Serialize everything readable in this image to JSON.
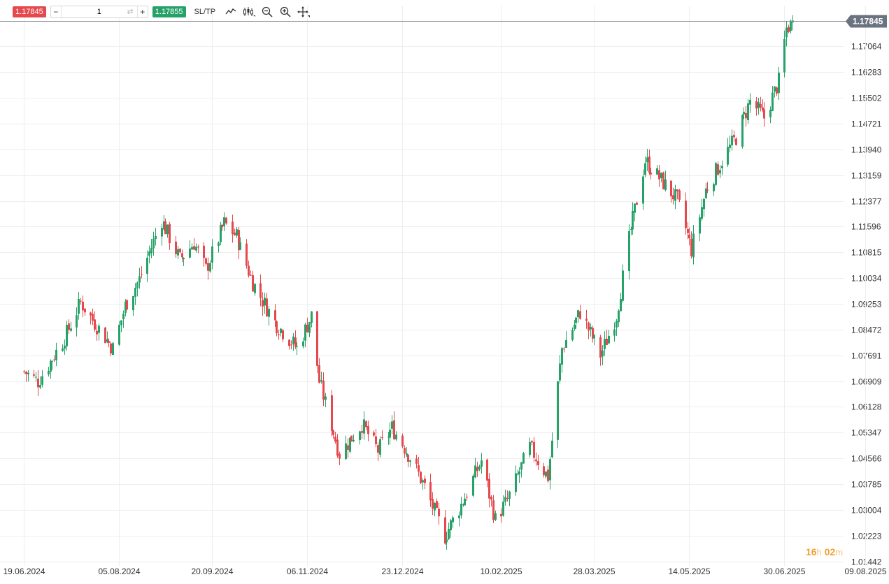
{
  "toolbar": {
    "sell_price": "1.17845",
    "quantity": "1",
    "buy_price": "1.17855",
    "sltp_label": "SL/TP",
    "icons": [
      "line-chart-icon",
      "candlestick-icon",
      "zoom-out-icon",
      "zoom-in-icon",
      "crosshair-icon"
    ]
  },
  "timer": {
    "hours": "16",
    "hours_unit": "h",
    "minutes": "02",
    "minutes_unit": "m"
  },
  "colors": {
    "up": "#26a269",
    "down": "#e5484d",
    "current_price_badge": "#6b7280",
    "grid": "#eeeeee",
    "timer": "#f0a030"
  },
  "chart_data": {
    "type": "candlestick",
    "title": "",
    "current_price": 1.17845,
    "y_ticks": [
      "1.17845",
      "1.17064",
      "1.16283",
      "1.15502",
      "1.14721",
      "1.13940",
      "1.13159",
      "1.12377",
      "1.11596",
      "1.10815",
      "1.10034",
      "1.09253",
      "1.08472",
      "1.07691",
      "1.06909",
      "1.06128",
      "1.05347",
      "1.04566",
      "1.03785",
      "1.03004",
      "1.02223",
      "1.01442"
    ],
    "x_ticks": [
      "19.06.2024",
      "05.08.2024",
      "20.09.2024",
      "06.11.2024",
      "23.12.2024",
      "10.02.2025",
      "28.03.2025",
      "14.05.2025",
      "30.06.2025",
      "09.08.2025"
    ],
    "ylim": [
      1.0145,
      1.1865
    ],
    "close_path": [
      [
        "19.06.2024",
        1.072
      ],
      [
        "26.06.2024",
        1.069
      ],
      [
        "08.07.2024",
        1.081
      ],
      [
        "17.07.2024",
        1.093
      ],
      [
        "26.07.2024",
        1.085
      ],
      [
        "02.08.2024",
        1.079
      ],
      [
        "08.08.2024",
        1.092
      ],
      [
        "15.08.2024",
        1.1
      ],
      [
        "26.08.2024",
        1.118
      ],
      [
        "04.09.2024",
        1.106
      ],
      [
        "11.09.2024",
        1.111
      ],
      [
        "17.09.2024",
        1.103
      ],
      [
        "26.09.2024",
        1.117
      ],
      [
        "02.10.2024",
        1.113
      ],
      [
        "10.10.2024",
        1.099
      ],
      [
        "21.10.2024",
        1.087
      ],
      [
        "01.11.2024",
        1.079
      ],
      [
        "08.11.2024",
        1.089
      ],
      [
        "12.11.2024",
        1.069
      ],
      [
        "22.11.2024",
        1.047
      ],
      [
        "03.12.2024",
        1.056
      ],
      [
        "11.12.2024",
        1.048
      ],
      [
        "18.12.2024",
        1.055
      ],
      [
        "27.12.2024",
        1.046
      ],
      [
        "03.01.2025",
        1.037
      ],
      [
        "13.01.2025",
        1.022
      ],
      [
        "23.01.2025",
        1.034
      ],
      [
        "31.01.2025",
        1.045
      ],
      [
        "07.02.2025",
        1.027
      ],
      [
        "13.02.2025",
        1.033
      ],
      [
        "24.02.2025",
        1.049
      ],
      [
        "05.03.2025",
        1.04
      ],
      [
        "12.03.2025",
        1.079
      ],
      [
        "21.03.2025",
        1.09
      ],
      [
        "31.03.2025",
        1.077
      ],
      [
        "08.04.2025",
        1.089
      ],
      [
        "14.04.2025",
        1.112
      ],
      [
        "22.04.2025",
        1.136
      ],
      [
        "30.04.2025",
        1.13
      ],
      [
        "08.05.2025",
        1.124
      ],
      [
        "15.05.2025",
        1.109
      ],
      [
        "22.05.2025",
        1.127
      ],
      [
        "30.05.2025",
        1.136
      ],
      [
        "06.06.2025",
        1.143
      ],
      [
        "13.06.2025",
        1.154
      ],
      [
        "20.06.2025",
        1.149
      ],
      [
        "27.06.2025",
        1.16
      ],
      [
        "01.07.2025",
        1.176
      ],
      [
        "04.07.2025",
        1.178
      ]
    ]
  }
}
